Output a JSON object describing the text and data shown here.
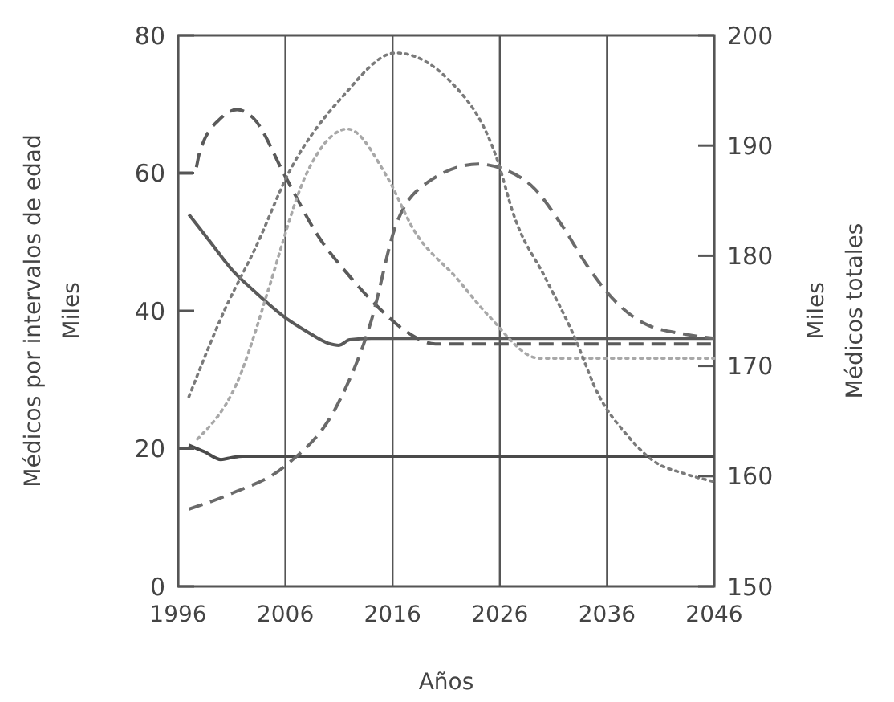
{
  "chart_data": {
    "type": "line",
    "xlabel": "Años",
    "ylabel": "Médicos por intervalos de edad\nMiles",
    "y2label": "Miles\nMédicos totales",
    "xlim": [
      1996,
      2046
    ],
    "xticks": [
      1996,
      2006,
      2016,
      2026,
      2036,
      2046
    ],
    "ylim": [
      0,
      80
    ],
    "yticks": [
      0,
      20,
      40,
      60,
      80
    ],
    "y2lim": [
      150,
      200
    ],
    "y2ticks": [
      150,
      160,
      170,
      180,
      190,
      200
    ],
    "grid": "x",
    "series": [
      {
        "color": "#4a4a4a",
        "line_style": "solid",
        "x": [
          1997,
          1998.5,
          2000,
          2001,
          2002,
          2046
        ],
        "values": [
          20.5,
          19.5,
          18.4,
          18.7,
          18.9,
          18.9
        ]
      },
      {
        "color": "#5a5a5a",
        "line_style": "solid",
        "x": [
          1997,
          1999,
          2001,
          2003,
          2006,
          2008,
          2010,
          2011,
          2012,
          2014,
          2046
        ],
        "values": [
          54,
          50,
          46,
          43,
          39,
          37,
          35.3,
          35,
          35.8,
          36,
          36
        ]
      },
      {
        "color": "#5a5a5a",
        "line_style": "dashed",
        "x": [
          1996,
          1997.5,
          1998,
          2000,
          2001.5,
          2003,
          2006,
          2009,
          2012,
          2015,
          2017,
          2020,
          2046
        ],
        "values": [
          60,
          60,
          63,
          68,
          69.2,
          68,
          59.5,
          51,
          45,
          40,
          37.3,
          35.2,
          35.2
        ]
      },
      {
        "color": "#6a6a6a",
        "line_style": "dashed",
        "x": [
          1997,
          2001,
          2006,
          2011,
          2014,
          2016.3,
          2019.3,
          2024,
          2026.3,
          2029.2,
          2031.8,
          2034.3,
          2036.7,
          2039.3,
          2043.3,
          2046
        ],
        "values": [
          11.2,
          13.5,
          17.5,
          26.8,
          38.5,
          52.4,
          58.7,
          61.3,
          60.6,
          57.8,
          52.4,
          46.2,
          41.5,
          38.3,
          36.6,
          36
        ]
      },
      {
        "color": "#a8a8a8",
        "line_style": "dotted",
        "x": [
          1997.8,
          2002,
          2003,
          2004.4,
          2008,
          2011.8,
          2015.5,
          2018,
          2022,
          2025,
          2029.7,
          2046
        ],
        "values": [
          21.4,
          31.5,
          36,
          43,
          60,
          66.4,
          59.4,
          51.7,
          44.7,
          39.2,
          33.1,
          33.1
        ]
      },
      {
        "color": "#7a7a7a",
        "line_style": "dotted",
        "axis": "y2",
        "x": [
          1997,
          2000.3,
          2003.3,
          2006.3,
          2011.3,
          2016.3,
          2021.3,
          2025.8,
          2027.3,
          2030.3,
          2032.8,
          2035.3,
          2037.8,
          2040.3,
          2043.3,
          2046
        ],
        "values": [
          167.2,
          175,
          180.9,
          187.5,
          194.4,
          198.4,
          195.9,
          188.6,
          183.7,
          177.9,
          173,
          167.2,
          163.8,
          161.4,
          160.2,
          159.5
        ]
      }
    ]
  }
}
